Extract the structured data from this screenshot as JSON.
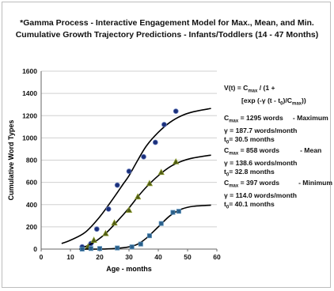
{
  "chart_data": {
    "type": "line",
    "title_line1": "*Gamma Process - Interactive Engagement Model for  Max., Mean, and Min.",
    "title_line2": "Cumulative Growth Trajectory Predictions - Infants/Toddlers (14 - 47 Months)",
    "xlabel": "Age - months",
    "ylabel": "Cumulative Word Types",
    "xlim": [
      0,
      60
    ],
    "ylim": [
      0,
      1600
    ],
    "xticks": [
      0,
      10,
      20,
      30,
      40,
      50,
      60
    ],
    "yticks": [
      0,
      200,
      400,
      600,
      800,
      1000,
      1200,
      1400,
      1600
    ],
    "grid": true,
    "formula": {
      "line1": "V(t) = C",
      "sub1": "max",
      "line1b": " / (1 +",
      "line2a": "[exp (-γ (t - t",
      "sub2a": "0",
      "line2b": ")/C",
      "sub2b": "max",
      "line2c": "))"
    },
    "series": [
      {
        "label": "Maximum",
        "params": {
          "c_line": " = 1295 words",
          "label_text": "- Maximum",
          "gamma_line": "γ = 187.7 words/month",
          "t0_line": "= 30.5 months"
        },
        "curve": [
          [
            7,
            50
          ],
          [
            10,
            80
          ],
          [
            15,
            150
          ],
          [
            20,
            290
          ],
          [
            25,
            470
          ],
          [
            28,
            585
          ],
          [
            30,
            660
          ],
          [
            33,
            800
          ],
          [
            36,
            930
          ],
          [
            40,
            1050
          ],
          [
            44,
            1140
          ],
          [
            48,
            1200
          ],
          [
            52,
            1235
          ],
          [
            58,
            1265
          ]
        ],
        "points": [
          [
            14,
            20
          ],
          [
            17,
            50
          ],
          [
            19,
            180
          ],
          [
            23,
            360
          ],
          [
            26,
            575
          ],
          [
            30,
            700
          ],
          [
            35,
            830
          ],
          [
            39,
            960
          ],
          [
            42,
            1120
          ],
          [
            46,
            1240
          ]
        ],
        "marker": "circle",
        "color": "#1a2f7a"
      },
      {
        "label": "Mean",
        "params": {
          "c_line": " = 858 words",
          "label_text": "- Mean",
          "gamma_line": "γ = 138.6 words/month",
          "t0_line": "= 32.8 months"
        },
        "curve": [
          [
            14,
            10
          ],
          [
            18,
            60
          ],
          [
            22,
            140
          ],
          [
            26,
            250
          ],
          [
            30,
            370
          ],
          [
            33,
            470
          ],
          [
            36,
            560
          ],
          [
            40,
            660
          ],
          [
            44,
            740
          ],
          [
            48,
            790
          ],
          [
            52,
            820
          ],
          [
            58,
            845
          ]
        ],
        "points": [
          [
            16,
            20
          ],
          [
            18,
            80
          ],
          [
            22,
            140
          ],
          [
            25,
            235
          ],
          [
            30,
            350
          ],
          [
            33,
            470
          ],
          [
            37,
            590
          ],
          [
            41,
            690
          ],
          [
            46,
            785
          ]
        ],
        "marker": "triangle",
        "color": "#4f5a14"
      },
      {
        "label": "Minimum",
        "params": {
          "c_line": " = 397 words",
          "label_text": "- Minimum",
          "gamma_line": "γ = 114.0 words/month",
          "t0_line": "= 40.1 months"
        },
        "curve": [
          [
            13,
            0
          ],
          [
            20,
            0
          ],
          [
            25,
            5
          ],
          [
            30,
            20
          ],
          [
            33,
            45
          ],
          [
            36,
            100
          ],
          [
            40,
            200
          ],
          [
            44,
            300
          ],
          [
            48,
            360
          ],
          [
            52,
            385
          ],
          [
            58,
            395
          ]
        ],
        "points": [
          [
            14,
            0
          ],
          [
            17,
            5
          ],
          [
            20,
            5
          ],
          [
            26,
            10
          ],
          [
            31,
            20
          ],
          [
            34,
            45
          ],
          [
            37,
            120
          ],
          [
            41,
            230
          ],
          [
            45,
            330
          ],
          [
            47,
            340
          ]
        ],
        "marker": "square",
        "color": "#2a5f8a"
      }
    ]
  },
  "labels": {
    "c_sym": "C",
    "c_sub": "max",
    "t_sym": "t",
    "t_sub": "0"
  }
}
